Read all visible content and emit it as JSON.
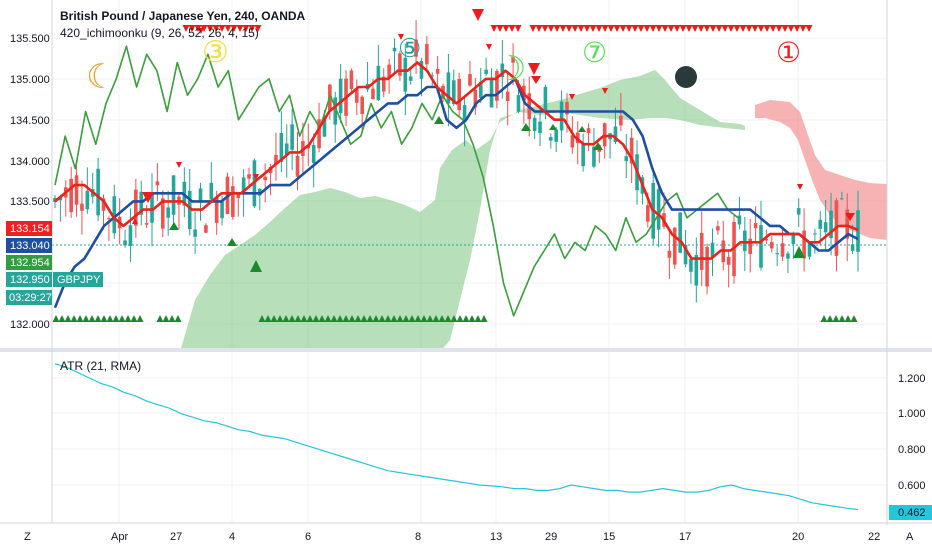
{
  "header": {
    "title": "British Pound / Japanese Yen, 240, OANDA",
    "indicator": "420_ichimoonku (9, 26, 52, 26, 4, 15)",
    "atr_label": "ATR (21, RMA)"
  },
  "price_axis": {
    "ticks": [
      "135.500",
      "135.000",
      "134.500",
      "134.000",
      "133.500",
      "132.000"
    ],
    "badges": [
      {
        "text": "133.154",
        "color": "#ef2020"
      },
      {
        "text": "133.040",
        "color": "#1e4fa0"
      },
      {
        "text": "132.954",
        "color": "#2e9e3e"
      },
      {
        "text": "132.950",
        "color": "#26a69a"
      },
      {
        "text": "03:29:27",
        "color": "#26a69a"
      }
    ],
    "symbol_tag": "GBPJPY"
  },
  "atr_axis": {
    "ticks": [
      "1.200",
      "1.000",
      "0.800",
      "0.600"
    ],
    "current": "0.462",
    "current_color": "#26c6da"
  },
  "time_axis": {
    "labels": [
      "Apr",
      "4",
      "6",
      "8",
      "13",
      "15",
      "17",
      "20",
      "22",
      "27",
      "29"
    ]
  },
  "corner": {
    "left": "Z",
    "right": "A"
  },
  "moon_markers": [
    "☾",
    "③",
    "⑤",
    "☽",
    "⑦",
    "①"
  ],
  "chart_data": {
    "type": "line",
    "title": "British Pound / Japanese Yen, 240, OANDA",
    "series": [
      {
        "name": "Tenkan",
        "color": "#e8241c",
        "y": [
          133.5,
          133.6,
          133.7,
          133.7,
          133.6,
          133.5,
          133.3,
          133.2,
          133.3,
          133.4,
          133.4,
          133.5,
          133.5,
          133.5,
          133.4,
          133.4,
          133.5,
          133.6,
          133.6,
          133.6,
          133.7,
          133.8,
          133.9,
          134.0,
          134.1,
          134.1,
          134.2,
          134.4,
          134.6,
          134.7,
          134.8,
          134.9,
          134.9,
          135.0,
          135.0,
          135.1,
          135.1,
          135.2,
          135.1,
          134.9,
          134.8,
          134.7,
          134.8,
          134.9,
          135.0,
          135.0,
          135.1,
          135.0,
          134.8,
          134.7,
          134.6,
          134.5,
          134.5,
          134.3,
          134.2,
          134.2,
          134.3,
          134.3,
          134.2,
          134.0,
          133.7,
          133.4,
          133.3,
          133.1,
          133.0,
          132.8,
          132.8,
          132.8,
          132.9,
          132.9,
          133.0,
          133.0,
          133.0,
          133.1,
          133.1,
          133.1,
          133.1,
          133.0,
          133.0,
          133.1,
          133.2,
          133.2,
          133.15
        ]
      },
      {
        "name": "Kijun",
        "color": "#1e4fa0",
        "y": [
          132.2,
          132.5,
          132.7,
          132.8,
          133.0,
          133.2,
          133.3,
          133.4,
          133.5,
          133.5,
          133.6,
          133.6,
          133.6,
          133.6,
          133.5,
          133.5,
          133.5,
          133.5,
          133.6,
          133.6,
          133.6,
          133.6,
          133.7,
          133.7,
          133.7,
          133.8,
          133.9,
          134.0,
          134.1,
          134.2,
          134.3,
          134.4,
          134.5,
          134.6,
          134.7,
          134.7,
          134.8,
          134.8,
          134.9,
          134.9,
          134.5,
          134.4,
          134.5,
          134.7,
          134.8,
          134.8,
          134.9,
          135.0,
          134.7,
          134.6,
          134.6,
          134.6,
          134.6,
          134.6,
          134.6,
          134.6,
          134.6,
          134.6,
          134.6,
          134.5,
          134.3,
          133.9,
          133.6,
          133.4,
          133.4,
          133.4,
          133.4,
          133.4,
          133.4,
          133.4,
          133.4,
          133.4,
          133.3,
          133.2,
          133.2,
          133.1,
          133.1,
          133.0,
          132.9,
          132.9,
          133.0,
          133.1,
          133.04
        ]
      },
      {
        "name": "Chikou",
        "color": "#3a9e3a",
        "y": [
          133.7,
          134.3,
          133.9,
          134.6,
          134.2,
          134.7,
          135.0,
          135.4,
          134.9,
          135.3,
          135.1,
          134.6,
          135.2,
          134.8,
          135.0,
          135.3,
          134.9,
          135.1,
          134.5,
          134.7,
          134.9,
          135.0,
          134.6,
          134.8,
          134.3,
          134.6,
          134.4,
          134.8,
          134.5,
          134.2,
          134.3,
          134.7,
          134.4,
          134.6,
          134.2,
          134.4,
          134.7,
          134.5,
          134.8,
          134.6,
          134.5,
          134.2,
          133.8,
          133.2,
          132.5,
          132.1,
          132.4,
          132.7,
          132.9,
          133.1,
          132.8,
          133.0,
          132.9,
          133.2,
          133.1,
          132.9,
          133.3,
          133.0,
          133.1,
          133.3,
          133.5,
          133.6,
          133.3,
          133.4,
          133.5,
          133.6,
          133.4,
          133.3
        ]
      },
      {
        "name": "ATR (21, RMA)",
        "color": "#26c6da",
        "y": [
          1.28,
          1.26,
          1.23,
          1.2,
          1.17,
          1.15,
          1.12,
          1.1,
          1.07,
          1.05,
          1.03,
          1.0,
          0.98,
          0.96,
          0.95,
          0.93,
          0.91,
          0.9,
          0.88,
          0.87,
          0.86,
          0.84,
          0.82,
          0.8,
          0.78,
          0.76,
          0.74,
          0.72,
          0.7,
          0.68,
          0.67,
          0.66,
          0.65,
          0.64,
          0.63,
          0.62,
          0.61,
          0.6,
          0.595,
          0.59,
          0.58,
          0.58,
          0.57,
          0.57,
          0.58,
          0.6,
          0.59,
          0.58,
          0.57,
          0.57,
          0.56,
          0.56,
          0.57,
          0.58,
          0.57,
          0.56,
          0.56,
          0.57,
          0.59,
          0.6,
          0.58,
          0.57,
          0.56,
          0.55,
          0.54,
          0.52,
          0.5,
          0.49,
          0.48,
          0.47,
          0.462
        ]
      }
    ],
    "ylim": [
      131.8,
      135.8
    ],
    "atr_ylim": [
      0.42,
      1.32
    ]
  }
}
